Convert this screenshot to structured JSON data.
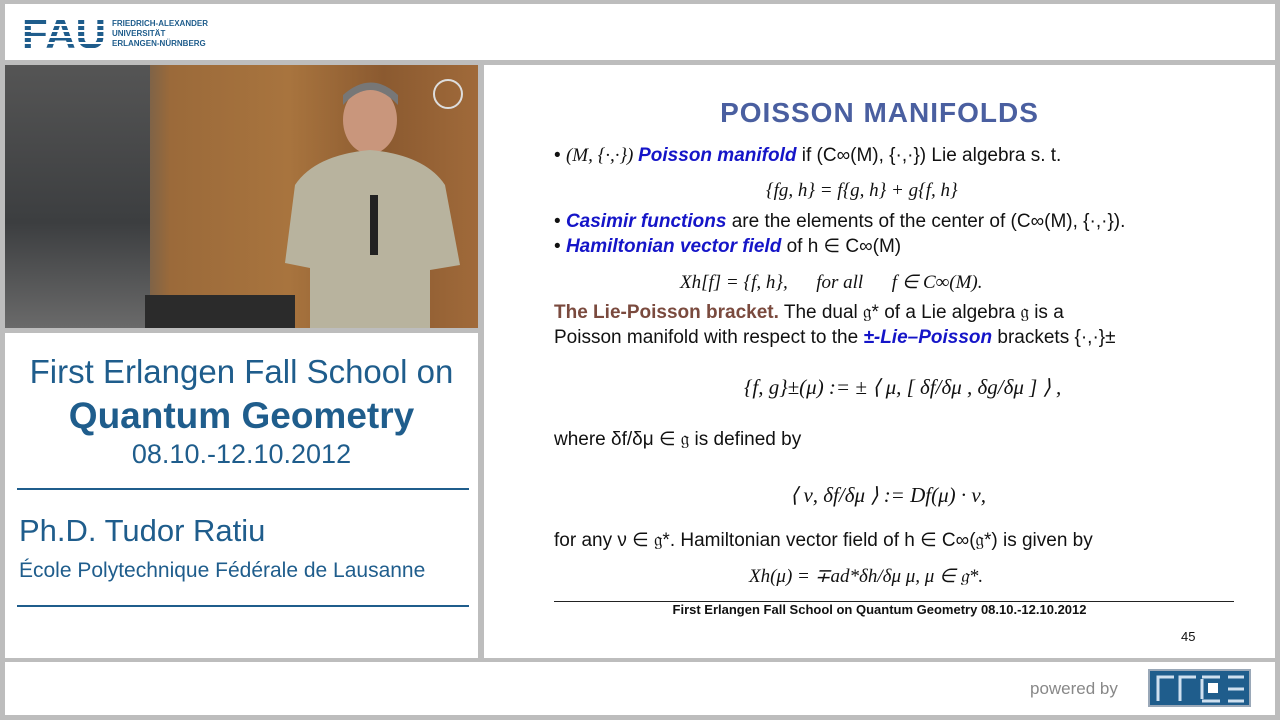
{
  "header": {
    "logo_mark": "FAU",
    "logo_lines": [
      "FRIEDRICH-ALEXANDER",
      "UNIVERSITÄT",
      "ERLANGEN-NÜRNBERG"
    ]
  },
  "info": {
    "line1": "First Erlangen Fall School on",
    "line2": "Quantum Geometry",
    "dates": "08.10.-12.10.2012",
    "speaker": "Ph.D. Tudor Ratiu",
    "affiliation": "École Polytechnique Fédérale de Lausanne"
  },
  "slide": {
    "title": "POISSON MANIFOLDS",
    "b1_pre": "(M, {·,·}) ",
    "b1_kw": "Poisson manifold",
    "b1_post": " if (C∞(M), {·,·}) Lie algebra s. t.",
    "eq1": "{fg, h} = f{g, h} + g{f, h}",
    "b2_kw": "Casimir functions",
    "b2_post": " are the elements of the center of (C∞(M), {·,·}).",
    "b3_kw": "Hamiltonian vector field",
    "b3_post": " of h ∈ C∞(M)",
    "eq2": "Xh[f] = {f, h},      for all      f ∈ C∞(M).",
    "lp_head": "The Lie-Poisson bracket.",
    "lp_text1": " The dual 𝔤* of a Lie algebra 𝔤 is a",
    "lp_text2_pre": "Poisson manifold with respect to the ",
    "lp_kw": "±-Lie–Poisson",
    "lp_text2_post": " brackets {·,·}±",
    "eq3": "{f, g}±(μ) := ± ⟨ μ, [ δf/δμ , δg/δμ ] ⟩ ,",
    "where": "where δf/δμ ∈ 𝔤 is defined by",
    "eq4": "⟨ ν, δf/δμ ⟩ := Df(μ) · ν,",
    "forany": "for any ν ∈ 𝔤*. Hamiltonian vector field of h ∈ C∞(𝔤*) is given by",
    "eq5": "Xh(μ) = ∓ad*δh/δμ μ,    μ ∈ 𝔤*.",
    "footer": "First Erlangen Fall School on Quantum Geometry 08.10.-12.10.2012",
    "page": "45"
  },
  "footer": {
    "powered_by": "powered by",
    "rrze_logo": "RRZE"
  },
  "colors": {
    "brand": "#1f5d8c",
    "keyword": "#1515c8",
    "title": "#4a5fa0"
  }
}
